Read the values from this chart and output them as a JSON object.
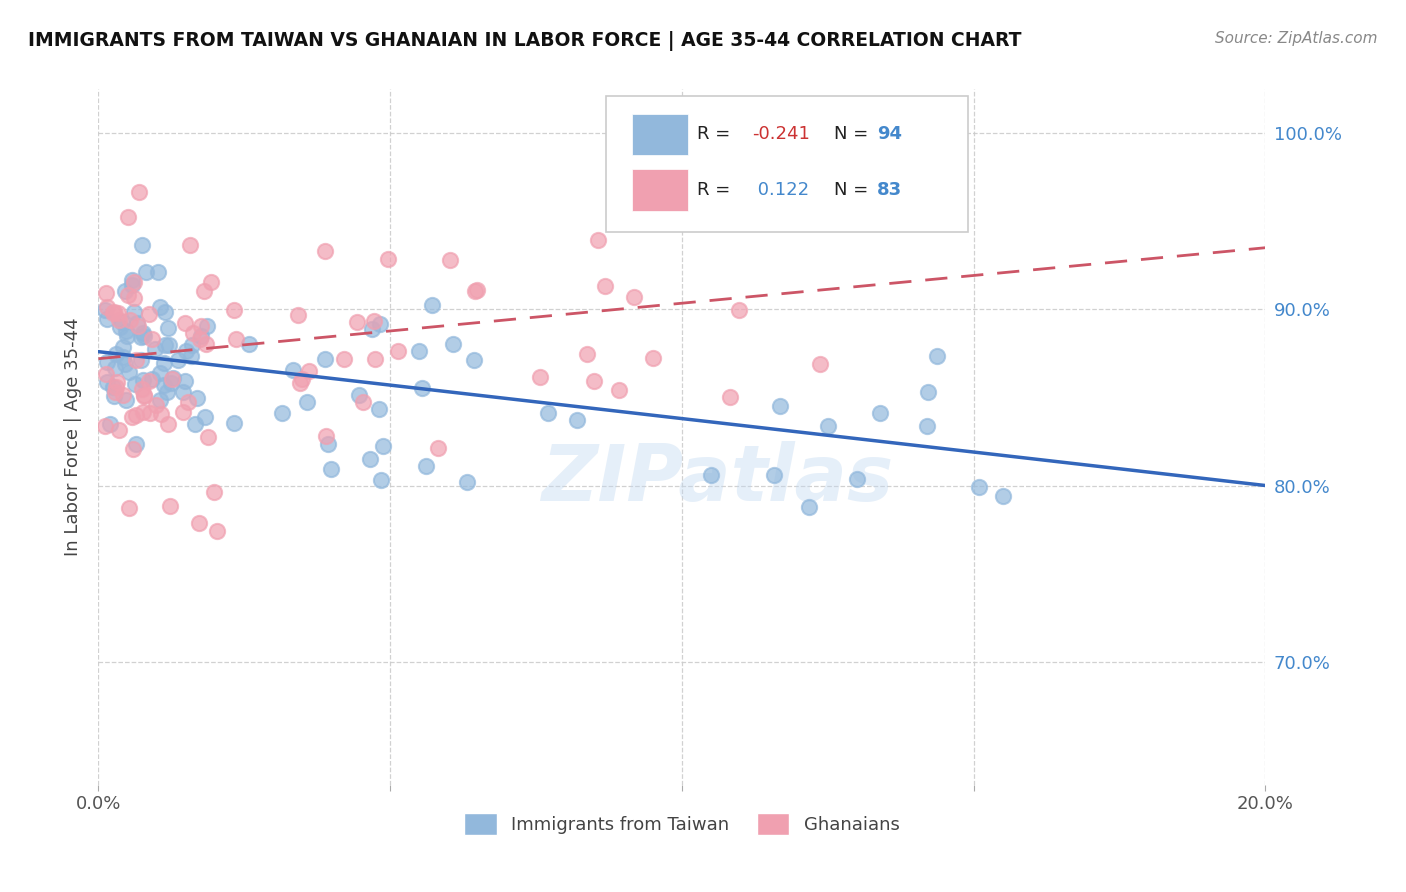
{
  "title": "IMMIGRANTS FROM TAIWAN VS GHANAIAN IN LABOR FORCE | AGE 35-44 CORRELATION CHART",
  "source": "Source: ZipAtlas.com",
  "ylabel": "In Labor Force | Age 35-44",
  "xlim": [
    0.0,
    0.2
  ],
  "ylim": [
    0.63,
    1.025
  ],
  "yticks": [
    0.7,
    0.8,
    0.9,
    1.0
  ],
  "ytick_labels": [
    "70.0%",
    "80.0%",
    "90.0%",
    "100.0%"
  ],
  "xticks": [
    0.0,
    0.05,
    0.1,
    0.15,
    0.2
  ],
  "xtick_labels": [
    "0.0%",
    "",
    "",
    "",
    "20.0%"
  ],
  "watermark": "ZIPatlas",
  "taiwan_color": "#92b8dc",
  "ghana_color": "#f0a0b0",
  "taiwan_trend_color": "#3366bb",
  "ghana_trend_color": "#cc5566",
  "taiwan_R": -0.241,
  "taiwan_N": 94,
  "ghana_R": 0.122,
  "ghana_N": 83,
  "tw_trend_x0": 0.0,
  "tw_trend_y0": 0.876,
  "tw_trend_x1": 0.2,
  "tw_trend_y1": 0.8,
  "gh_trend_x0": 0.0,
  "gh_trend_y0": 0.872,
  "gh_trend_x1": 0.2,
  "gh_trend_y1": 0.935
}
